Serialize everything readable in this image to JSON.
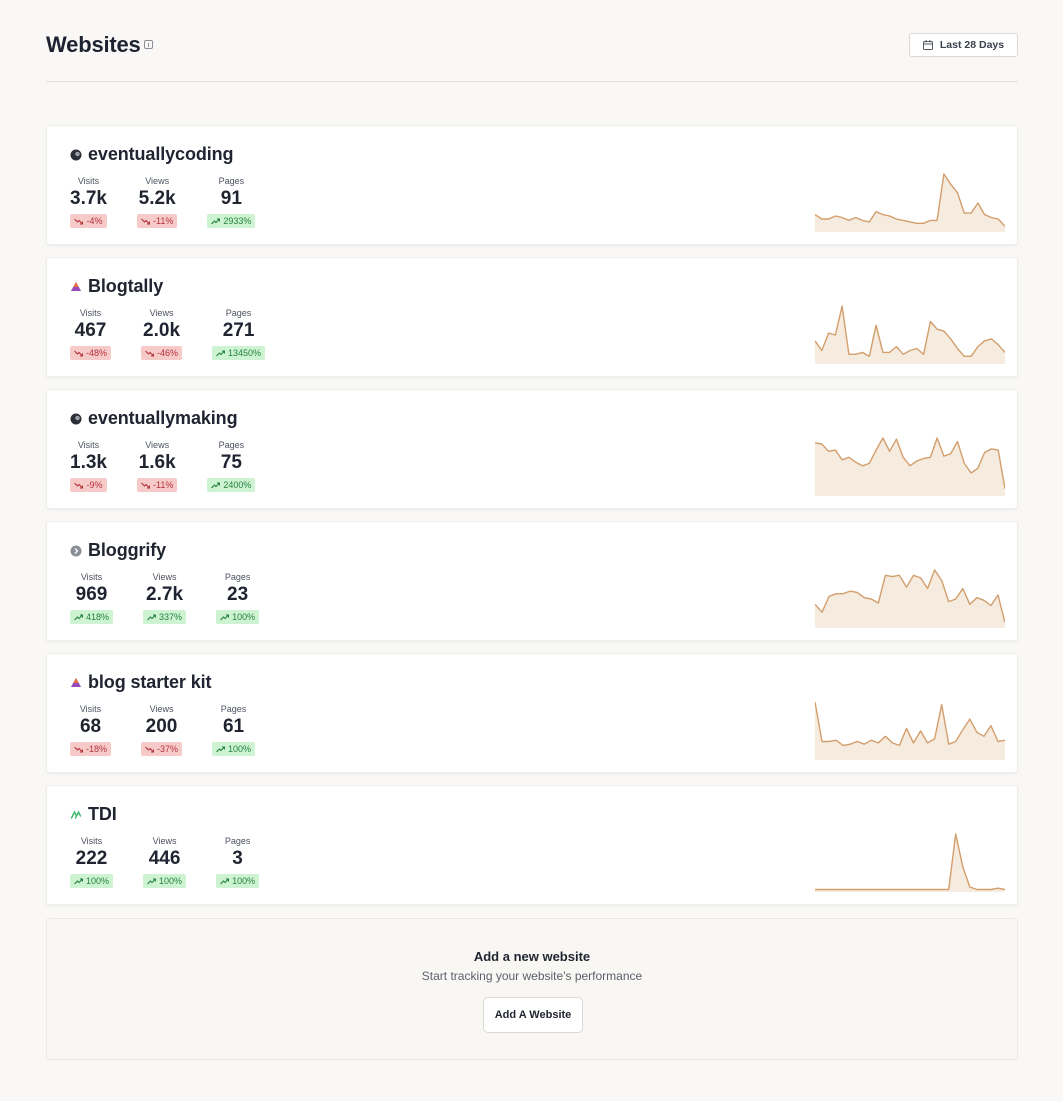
{
  "page": {
    "title": "Websites",
    "info_icon": "info-icon",
    "date_range_label": "Last 28 Days",
    "date_icon": "calendar-icon"
  },
  "sites": [
    {
      "name": "eventuallycoding",
      "logo": "dark-circle-logo",
      "metrics": [
        {
          "label": "Visits",
          "value": "3.7k",
          "delta": "-4%",
          "trend": "down"
        },
        {
          "label": "Views",
          "value": "5.2k",
          "delta": "-11%",
          "trend": "down"
        },
        {
          "label": "Pages",
          "value": "91",
          "delta": "2933%",
          "trend": "up"
        }
      ],
      "spark": [
        12,
        9,
        9,
        11,
        10,
        8,
        10,
        8,
        7,
        14,
        12,
        11,
        9,
        8,
        7,
        6,
        6,
        8,
        8,
        40,
        33,
        27,
        13,
        13,
        20,
        12,
        10,
        9,
        4
      ]
    },
    {
      "name": "Blogtally",
      "logo": "blogtally-logo",
      "metrics": [
        {
          "label": "Visits",
          "value": "467",
          "delta": "-48%",
          "trend": "down"
        },
        {
          "label": "Views",
          "value": "2.0k",
          "delta": "-46%",
          "trend": "down"
        },
        {
          "label": "Pages",
          "value": "271",
          "delta": "13450%",
          "trend": "up"
        }
      ],
      "spark": [
        12,
        7,
        16,
        15,
        30,
        5,
        5,
        6,
        4,
        20,
        6,
        6,
        9,
        5,
        7,
        8,
        5,
        22,
        18,
        17,
        13,
        8,
        4,
        4,
        9,
        12,
        13,
        10,
        6
      ]
    },
    {
      "name": "eventuallymaking",
      "logo": "dark-circle-logo",
      "metrics": [
        {
          "label": "Visits",
          "value": "1.3k",
          "delta": "-9%",
          "trend": "down"
        },
        {
          "label": "Views",
          "value": "1.6k",
          "delta": "-11%",
          "trend": "down"
        },
        {
          "label": "Pages",
          "value": "75",
          "delta": "2400%",
          "trend": "up"
        }
      ],
      "spark": [
        44,
        43,
        37,
        38,
        30,
        32,
        28,
        25,
        27,
        38,
        48,
        37,
        47,
        32,
        25,
        29,
        31,
        32,
        48,
        33,
        35,
        45,
        27,
        19,
        23,
        36,
        39,
        38,
        6
      ]
    },
    {
      "name": "Bloggrify",
      "logo": "bloggrify-logo",
      "metrics": [
        {
          "label": "Visits",
          "value": "969",
          "delta": "418%",
          "trend": "up"
        },
        {
          "label": "Views",
          "value": "2.7k",
          "delta": "337%",
          "trend": "up"
        },
        {
          "label": "Pages",
          "value": "23",
          "delta": "100%",
          "trend": "up"
        }
      ],
      "spark": [
        18,
        12,
        24,
        26,
        26,
        28,
        27,
        23,
        22,
        19,
        40,
        39,
        40,
        31,
        40,
        38,
        30,
        44,
        36,
        20,
        22,
        30,
        18,
        23,
        21,
        17,
        25,
        4
      ]
    },
    {
      "name": "blog starter kit",
      "logo": "blog-starter-kit-logo",
      "metrics": [
        {
          "label": "Visits",
          "value": "68",
          "delta": "-18%",
          "trend": "down"
        },
        {
          "label": "Views",
          "value": "200",
          "delta": "-37%",
          "trend": "down"
        },
        {
          "label": "Pages",
          "value": "61",
          "delta": "100%",
          "trend": "up"
        }
      ],
      "spark": [
        44,
        14,
        14,
        15,
        11,
        12,
        14,
        12,
        15,
        13,
        18,
        13,
        11,
        24,
        13,
        22,
        13,
        16,
        42,
        12,
        14,
        23,
        31,
        21,
        18,
        26,
        14,
        15
      ]
    },
    {
      "name": "TDI",
      "logo": "tdi-logo",
      "metrics": [
        {
          "label": "Visits",
          "value": "222",
          "delta": "100%",
          "trend": "up"
        },
        {
          "label": "Views",
          "value": "446",
          "delta": "100%",
          "trend": "up"
        },
        {
          "label": "Pages",
          "value": "3",
          "delta": "100%",
          "trend": "up"
        }
      ],
      "spark": [
        2,
        2,
        2,
        2,
        2,
        2,
        2,
        2,
        2,
        2,
        2,
        2,
        2,
        2,
        2,
        2,
        2,
        2,
        2,
        2,
        46,
        20,
        4,
        2,
        2,
        2,
        3,
        2
      ]
    }
  ],
  "add_website": {
    "title": "Add a new website",
    "subtitle": "Start tracking your website's performance",
    "button_label": "Add A Website"
  },
  "colors": {
    "spark_line": "#d29e6c",
    "spark_fill": "#f6ebdf",
    "delta_down_bg": "#f7caca",
    "delta_up_bg": "#cdf3d3"
  }
}
